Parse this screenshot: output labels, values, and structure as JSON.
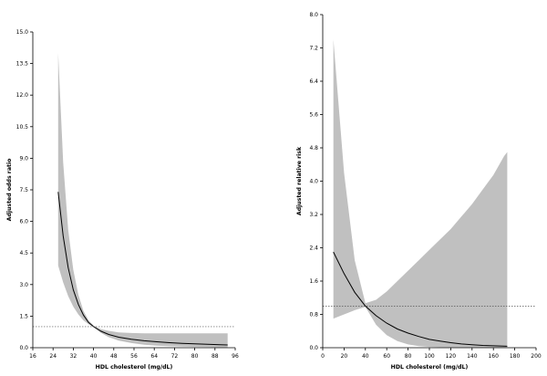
{
  "chart_data": [
    {
      "type": "line",
      "title": "",
      "xlabel": "HDL cholesterol (mg/dL)",
      "ylabel": "Adjusted odds ratio",
      "xlim": [
        16,
        96
      ],
      "ylim": [
        0,
        15
      ],
      "xticks": [
        "16",
        "24",
        "32",
        "40",
        "48",
        "56",
        "64",
        "72",
        "80",
        "88",
        "96"
      ],
      "yticks": [
        "0.0",
        "1.5",
        "3.0",
        "4.5",
        "6.0",
        "7.5",
        "9.0",
        "10.5",
        "12.0",
        "13.5",
        "15.0"
      ],
      "reference_line": 1,
      "grid": false,
      "series": [
        {
          "x": [
            26,
            28,
            30,
            32,
            34,
            36,
            38,
            40,
            43,
            46,
            50,
            55,
            60,
            65,
            70,
            75,
            80,
            85,
            90,
            93
          ],
          "y": [
            7.4,
            5.3,
            3.8,
            2.75,
            2.05,
            1.55,
            1.2,
            1.0,
            0.78,
            0.63,
            0.5,
            0.4,
            0.33,
            0.28,
            0.24,
            0.21,
            0.18,
            0.16,
            0.14,
            0.13
          ],
          "band_upper": [
            14.0,
            8.8,
            5.6,
            3.7,
            2.5,
            1.75,
            1.3,
            1.05,
            0.88,
            0.8,
            0.73,
            0.7,
            0.68,
            0.68,
            0.68,
            0.68,
            0.68,
            0.68,
            0.68,
            0.68
          ],
          "band_lower": [
            3.9,
            3.1,
            2.45,
            1.95,
            1.58,
            1.3,
            1.12,
            0.98,
            0.7,
            0.5,
            0.34,
            0.22,
            0.14,
            0.1,
            0.07,
            0.05,
            0.04,
            0.03,
            0.02,
            0.02
          ]
        }
      ]
    },
    {
      "type": "line",
      "title": "",
      "xlabel": "HDL cholesterol (mg/dL)",
      "ylabel": "Adjusted relative risk",
      "xlim": [
        0,
        200
      ],
      "ylim": [
        0,
        8
      ],
      "xticks": [
        "0",
        "20",
        "40",
        "60",
        "80",
        "100",
        "120",
        "140",
        "160",
        "180",
        "200"
      ],
      "yticks": [
        "0.0",
        "0.8",
        "1.6",
        "2.4",
        "3.2",
        "4.0",
        "4.8",
        "5.6",
        "6.4",
        "7.2",
        "8.0"
      ],
      "reference_line": 1,
      "grid": false,
      "series": [
        {
          "x": [
            10,
            20,
            30,
            40,
            50,
            60,
            70,
            80,
            90,
            100,
            110,
            120,
            130,
            140,
            150,
            160,
            170,
            173
          ],
          "y": [
            2.3,
            1.78,
            1.33,
            1.0,
            0.77,
            0.59,
            0.45,
            0.35,
            0.27,
            0.2,
            0.16,
            0.12,
            0.09,
            0.07,
            0.055,
            0.045,
            0.038,
            0.035
          ],
          "band_upper": [
            7.4,
            4.2,
            2.1,
            1.07,
            1.15,
            1.35,
            1.6,
            1.85,
            2.1,
            2.35,
            2.6,
            2.85,
            3.15,
            3.45,
            3.8,
            4.15,
            4.6,
            4.7
          ],
          "band_lower": [
            0.7,
            0.8,
            0.9,
            0.98,
            0.55,
            0.3,
            0.16,
            0.08,
            0.04,
            0.02,
            0.01,
            0.005,
            0.003,
            0.002,
            0.001,
            0.001,
            0.001,
            0.001
          ]
        }
      ]
    }
  ]
}
